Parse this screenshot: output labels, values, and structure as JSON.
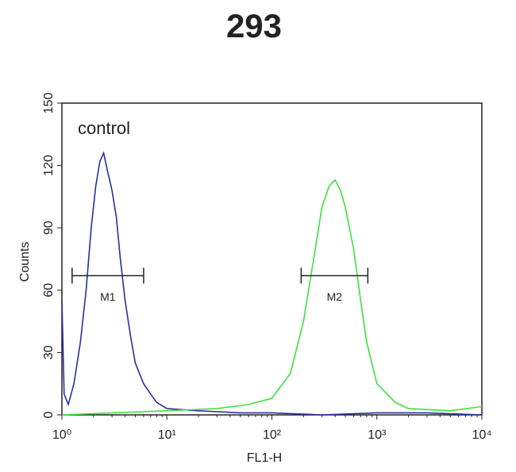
{
  "chart_data": {
    "type": "line",
    "title": "293",
    "xlabel": "FL1-H",
    "ylabel": "Counts",
    "xscale": "log",
    "xlim": [
      1,
      10000
    ],
    "xticks": [
      {
        "value": 1,
        "label": "10⁰"
      },
      {
        "value": 10,
        "label": "10¹"
      },
      {
        "value": 100,
        "label": "10²"
      },
      {
        "value": 1000,
        "label": "10³"
      },
      {
        "value": 10000,
        "label": "10⁴"
      }
    ],
    "ylim": [
      0,
      150
    ],
    "yticks": [
      0,
      30,
      60,
      90,
      120,
      150
    ],
    "series": [
      {
        "name": "control",
        "color": "#2b2f9e",
        "x": [
          1,
          1.05,
          1.15,
          1.3,
          1.5,
          1.7,
          1.9,
          2.1,
          2.3,
          2.5,
          2.7,
          3.0,
          3.3,
          3.6,
          4.0,
          4.5,
          5.0,
          6.0,
          7.0,
          8.0,
          10,
          20,
          50,
          100,
          300,
          1000,
          3000,
          10000
        ],
        "y": [
          55,
          10,
          5,
          15,
          35,
          60,
          90,
          110,
          122,
          126,
          118,
          108,
          95,
          75,
          55,
          38,
          25,
          15,
          10,
          6,
          3,
          2,
          1,
          1,
          0,
          1,
          1,
          0
        ]
      },
      {
        "color": "#3fe03f",
        "x": [
          1,
          10,
          30,
          60,
          100,
          150,
          200,
          250,
          300,
          350,
          400,
          450,
          500,
          600,
          700,
          800,
          1000,
          1500,
          2000,
          5000,
          10000
        ],
        "y": [
          0,
          2,
          3,
          5,
          8,
          20,
          45,
          75,
          100,
          110,
          113,
          108,
          100,
          80,
          55,
          35,
          15,
          6,
          3,
          2,
          4
        ]
      }
    ],
    "markers": [
      {
        "label": "M1",
        "x_range": [
          1.25,
          6
        ],
        "y": 67
      },
      {
        "label": "M2",
        "x_range": [
          190,
          820
        ],
        "y": 67
      }
    ]
  }
}
